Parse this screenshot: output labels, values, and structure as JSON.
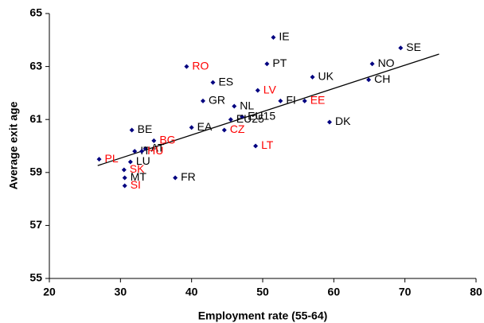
{
  "chart_data": {
    "type": "scatter",
    "x_label": "Employment rate (55-64)",
    "y_label": "Average exit age",
    "xlim": [
      20,
      80
    ],
    "xticks": [
      20,
      30,
      40,
      50,
      60,
      70,
      80
    ],
    "ylim": [
      55,
      65
    ],
    "yticks": [
      55,
      57,
      59,
      61,
      63,
      65
    ],
    "marker_color": "#000080",
    "grid": false,
    "labels": [
      "IE",
      "PT",
      "SE",
      "NO",
      "RO",
      "UK",
      "CH",
      "ES",
      "LV",
      "GR",
      "FI",
      "EE",
      "NL",
      "EU15",
      "EU25",
      "DK",
      "EA",
      "CZ",
      "BE",
      "BG",
      "LT",
      "AT",
      "IT",
      "HU",
      "PL",
      "LU",
      "SK",
      "MT",
      "SI",
      "FR"
    ],
    "x": [
      51.5,
      50.6,
      69.4,
      65.4,
      39.3,
      57.0,
      64.9,
      43.0,
      49.3,
      41.6,
      52.5,
      55.9,
      46.0,
      47.1,
      45.5,
      59.4,
      40.0,
      44.6,
      31.6,
      34.7,
      49.0,
      33.5,
      32.0,
      33.0,
      27.0,
      31.4,
      30.5,
      30.6,
      30.6,
      37.7
    ],
    "y": [
      64.1,
      63.1,
      63.7,
      63.1,
      63.0,
      62.6,
      62.5,
      62.4,
      62.1,
      61.7,
      61.7,
      61.7,
      61.5,
      61.1,
      61.0,
      60.9,
      60.7,
      60.6,
      60.6,
      60.2,
      60.0,
      59.9,
      59.8,
      59.8,
      59.5,
      59.4,
      59.1,
      58.8,
      58.5,
      58.8
    ],
    "label_colors": [
      "#000000",
      "#000000",
      "#000000",
      "#000000",
      "#ff0000",
      "#000000",
      "#000000",
      "#000000",
      "#ff0000",
      "#000000",
      "#000000",
      "#ff0000",
      "#000000",
      "#000000",
      "#000000",
      "#000000",
      "#000000",
      "#ff0000",
      "#000000",
      "#ff0000",
      "#ff0000",
      "#000000",
      "#000000",
      "#ff0000",
      "#ff0000",
      "#000000",
      "#ff0000",
      "#000000",
      "#ff0000",
      "#000000"
    ],
    "trendline": {
      "x": [
        26.8,
        74.8
      ],
      "y": [
        59.26,
        63.47
      ],
      "color": "#000000"
    }
  }
}
